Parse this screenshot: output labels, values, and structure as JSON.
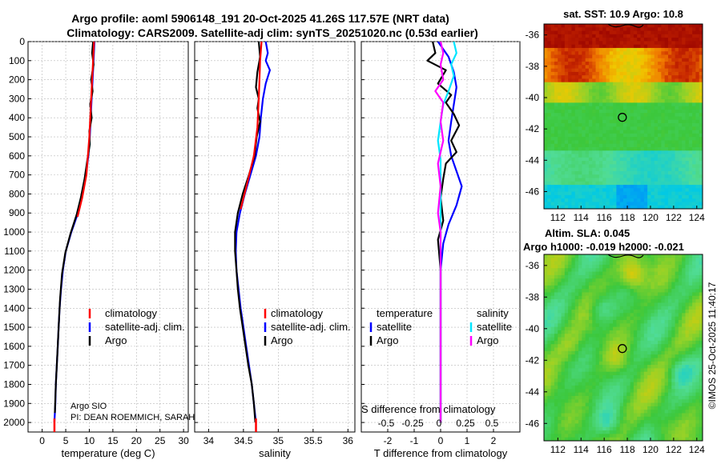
{
  "title_line1": "Argo profile: aoml 5906148_191 20-Oct-2025 41.26S 117.57E (NRT data)",
  "title_line2": "Climatology: CARS2009. Satellite-adj clim: synTS_20251020.nc (0.53d earlier)",
  "credit_line1": "Argo SIO",
  "credit_line2": "PI: DEAN ROEMMICH, SARAH",
  "stamp": "©IMOS 25-Oct-2025 11:40:17",
  "colors": {
    "climatology": "#ff0000",
    "satellite": "#0000ff",
    "argo": "#000000",
    "sat_salinity": "#00e5ff",
    "argo_salinity": "#ff00ff"
  },
  "chart_data": [
    {
      "type": "line",
      "name": "temperature-profile",
      "xlabel": "temperature (deg C)",
      "xlim": [
        -3,
        31
      ],
      "ylim": [
        0,
        2050
      ],
      "xticks": [
        0,
        5,
        10,
        15,
        20,
        25,
        30
      ],
      "yticks": [
        0,
        100,
        200,
        300,
        400,
        500,
        600,
        700,
        800,
        900,
        1000,
        1100,
        1200,
        1300,
        1400,
        1500,
        1600,
        1700,
        1800,
        1900,
        2000
      ],
      "legend": [
        "climatology",
        "satellite-adj. clim.",
        "Argo"
      ],
      "series": [
        {
          "name": "satellite-adj. clim.",
          "color": "#0000ff",
          "points": [
            [
              11.1,
              0
            ],
            [
              10.9,
              100
            ],
            [
              10.7,
              200
            ],
            [
              10.5,
              300
            ],
            [
              10.3,
              400
            ],
            [
              10.1,
              500
            ],
            [
              9.8,
              600
            ],
            [
              9.3,
              700
            ],
            [
              8.6,
              800
            ],
            [
              7.6,
              900
            ],
            [
              6.2,
              1000
            ],
            [
              5.0,
              1100
            ],
            [
              4.4,
              1200
            ],
            [
              4.0,
              1300
            ],
            [
              3.7,
              1400
            ],
            [
              3.5,
              1500
            ],
            [
              3.3,
              1600
            ],
            [
              3.1,
              1700
            ],
            [
              2.9,
              1800
            ],
            [
              2.8,
              1900
            ],
            [
              2.6,
              2000
            ]
          ]
        },
        {
          "name": "Argo",
          "color": "#000000",
          "points": [
            [
              10.8,
              0
            ],
            [
              10.6,
              60
            ],
            [
              10.9,
              120
            ],
            [
              10.4,
              200
            ],
            [
              10.7,
              260
            ],
            [
              10.2,
              330
            ],
            [
              10.5,
              400
            ],
            [
              10.0,
              470
            ],
            [
              10.1,
              540
            ],
            [
              9.6,
              620
            ],
            [
              9.0,
              720
            ],
            [
              8.2,
              820
            ],
            [
              7.3,
              910
            ],
            [
              6.0,
              1010
            ],
            [
              4.9,
              1110
            ],
            [
              4.2,
              1220
            ],
            [
              3.8,
              1350
            ],
            [
              3.5,
              1500
            ],
            [
              3.2,
              1650
            ],
            [
              2.9,
              1800
            ],
            [
              2.7,
              1950
            ]
          ]
        },
        {
          "name": "climatology",
          "color": "#ff0000",
          "points": [
            [
              11.0,
              0
            ],
            [
              10.7,
              150
            ],
            [
              10.4,
              300
            ],
            [
              10.0,
              500
            ],
            [
              9.4,
              700
            ],
            [
              8.5,
              820
            ],
            [
              7.5,
              920
            ]
          ]
        }
      ]
    },
    {
      "type": "line",
      "name": "salinity-profile",
      "xlabel": "salinity",
      "xlim": [
        33.8,
        36.1
      ],
      "ylim": [
        0,
        2050
      ],
      "xticks": [
        34,
        34.5,
        35,
        35.5,
        36
      ],
      "legend": [
        "climatology",
        "satellite-adj. clim.",
        "Argo"
      ],
      "series": [
        {
          "name": "satellite-adj. clim.",
          "color": "#0000ff",
          "points": [
            [
              34.82,
              0
            ],
            [
              34.85,
              60
            ],
            [
              34.82,
              100
            ],
            [
              34.88,
              150
            ],
            [
              34.82,
              220
            ],
            [
              34.78,
              300
            ],
            [
              34.75,
              400
            ],
            [
              34.73,
              500
            ],
            [
              34.68,
              600
            ],
            [
              34.6,
              700
            ],
            [
              34.52,
              800
            ],
            [
              34.45,
              900
            ],
            [
              34.4,
              1000
            ],
            [
              34.39,
              1100
            ],
            [
              34.4,
              1200
            ],
            [
              34.43,
              1300
            ],
            [
              34.46,
              1400
            ],
            [
              34.5,
              1500
            ],
            [
              34.54,
              1600
            ],
            [
              34.58,
              1700
            ],
            [
              34.62,
              1800
            ],
            [
              34.65,
              1900
            ],
            [
              34.68,
              2000
            ]
          ]
        },
        {
          "name": "Argo",
          "color": "#000000",
          "points": [
            [
              34.72,
              0
            ],
            [
              34.74,
              80
            ],
            [
              34.7,
              160
            ],
            [
              34.68,
              240
            ],
            [
              34.72,
              300
            ],
            [
              34.7,
              350
            ],
            [
              34.74,
              420
            ],
            [
              34.69,
              500
            ],
            [
              34.66,
              600
            ],
            [
              34.58,
              700
            ],
            [
              34.49,
              800
            ],
            [
              34.42,
              900
            ],
            [
              34.38,
              1000
            ],
            [
              34.38,
              1100
            ],
            [
              34.4,
              1200
            ],
            [
              34.42,
              1300
            ],
            [
              34.45,
              1400
            ],
            [
              34.49,
              1500
            ],
            [
              34.53,
              1600
            ],
            [
              34.57,
              1700
            ],
            [
              34.62,
              1800
            ],
            [
              34.65,
              1900
            ],
            [
              34.67,
              2000
            ]
          ]
        },
        {
          "name": "climatology",
          "color": "#ff0000",
          "points": [
            [
              34.76,
              0
            ],
            [
              34.74,
              100
            ],
            [
              34.73,
              200
            ],
            [
              34.72,
              300
            ],
            [
              34.7,
              450
            ],
            [
              34.65,
              600
            ],
            [
              34.55,
              750
            ],
            [
              34.46,
              880
            ]
          ]
        }
      ]
    },
    {
      "type": "line",
      "name": "difference-profile",
      "xlabel": "T difference from climatology",
      "overlay_label": "S difference from climatology",
      "xlim": [
        -3,
        3
      ],
      "ylim": [
        0,
        2050
      ],
      "xticks": [
        -2,
        -1,
        0,
        1,
        2
      ],
      "xtick_labels": [
        "-2",
        "-1",
        "0",
        "1",
        "2"
      ],
      "s_ticks": [
        -0.5,
        -0.25,
        0,
        0.25,
        0.5
      ],
      "s_tick_labels": [
        "-0.5",
        "-0.25",
        "0",
        "0.25",
        "0.5"
      ],
      "legend_titles": [
        "temperature",
        "salinity"
      ],
      "legend_temperature": [
        "satellite",
        "Argo"
      ],
      "legend_salinity": [
        "satellite",
        "Argo"
      ],
      "series": [
        {
          "name": "T satellite",
          "color": "#0000ff",
          "points": [
            [
              -0.1,
              0
            ],
            [
              0.3,
              80
            ],
            [
              0.5,
              160
            ],
            [
              0.6,
              240
            ],
            [
              0.5,
              330
            ],
            [
              0.4,
              420
            ],
            [
              0.3,
              520
            ],
            [
              0.4,
              600
            ],
            [
              0.6,
              680
            ],
            [
              0.8,
              760
            ],
            [
              0.6,
              860
            ],
            [
              0.3,
              960
            ],
            [
              0.1,
              1060
            ],
            [
              0.0,
              1200
            ],
            [
              0.0,
              1400
            ],
            [
              0.0,
              1600
            ],
            [
              0.0,
              1800
            ],
            [
              0.0,
              2000
            ]
          ]
        },
        {
          "name": "T Argo",
          "color": "#000000",
          "points": [
            [
              -0.3,
              0
            ],
            [
              -0.2,
              60
            ],
            [
              -0.5,
              100
            ],
            [
              0.2,
              150
            ],
            [
              -0.1,
              220
            ],
            [
              0.4,
              280
            ],
            [
              0.2,
              320
            ],
            [
              0.5,
              380
            ],
            [
              0.7,
              440
            ],
            [
              0.4,
              520
            ],
            [
              0.6,
              580
            ],
            [
              0.2,
              640
            ],
            [
              0.1,
              720
            ],
            [
              0.0,
              820
            ],
            [
              0.1,
              940
            ],
            [
              -0.1,
              1040
            ],
            [
              0.0,
              1200
            ],
            [
              0.0,
              1400
            ],
            [
              0.0,
              1600
            ],
            [
              0.0,
              1800
            ],
            [
              0.0,
              2000
            ]
          ]
        },
        {
          "name": "S satellite",
          "color": "#00e5ff",
          "points": [
            [
              0.5,
              0
            ],
            [
              0.6,
              60
            ],
            [
              0.4,
              120
            ],
            [
              0.5,
              180
            ],
            [
              0.3,
              260
            ],
            [
              0.1,
              330
            ],
            [
              0.0,
              420
            ],
            [
              -0.1,
              520
            ],
            [
              0.0,
              620
            ],
            [
              0.0,
              760
            ],
            [
              0.0,
              900
            ],
            [
              0.0,
              1100
            ],
            [
              0.0,
              1400
            ],
            [
              0.0,
              1700
            ],
            [
              0.0,
              2000
            ]
          ]
        },
        {
          "name": "S Argo",
          "color": "#ff00ff",
          "points": [
            [
              0.0,
              0
            ],
            [
              0.1,
              60
            ],
            [
              0.0,
              120
            ],
            [
              0.1,
              200
            ],
            [
              -0.2,
              260
            ],
            [
              0.1,
              320
            ],
            [
              0.0,
              420
            ],
            [
              0.1,
              520
            ],
            [
              -0.1,
              640
            ],
            [
              0.0,
              760
            ],
            [
              -0.1,
              900
            ],
            [
              0.0,
              1000
            ],
            [
              0.0,
              1100
            ],
            [
              0.0,
              1400
            ],
            [
              0.0,
              1700
            ],
            [
              0.0,
              2000
            ]
          ]
        }
      ]
    },
    {
      "type": "heatmap",
      "name": "sst-map",
      "title": "sat. SST: 10.9 Argo: 10.8",
      "lon_range": [
        110.8,
        124.5
      ],
      "lat_range": [
        -47.1,
        -35.3
      ],
      "xticks": [
        112,
        114,
        116,
        118,
        120,
        122,
        124
      ],
      "yticks": [
        -36,
        -38,
        -40,
        -42,
        -44,
        -46
      ],
      "argo_position": {
        "lon": 117.57,
        "lat": -41.26
      }
    },
    {
      "type": "heatmap",
      "name": "sla-map",
      "title_line1": "Altim. SLA: 0.045",
      "title_line2": "Argo h1000: -0.019 h2000: -0.021",
      "lon_range": [
        110.8,
        124.5
      ],
      "lat_range": [
        -47.1,
        -35.3
      ],
      "xticks": [
        112,
        114,
        116,
        118,
        120,
        122,
        124
      ],
      "yticks": [
        -36,
        -38,
        -40,
        -42,
        -44,
        -46
      ],
      "argo_position": {
        "lon": 117.57,
        "lat": -41.26
      }
    }
  ]
}
